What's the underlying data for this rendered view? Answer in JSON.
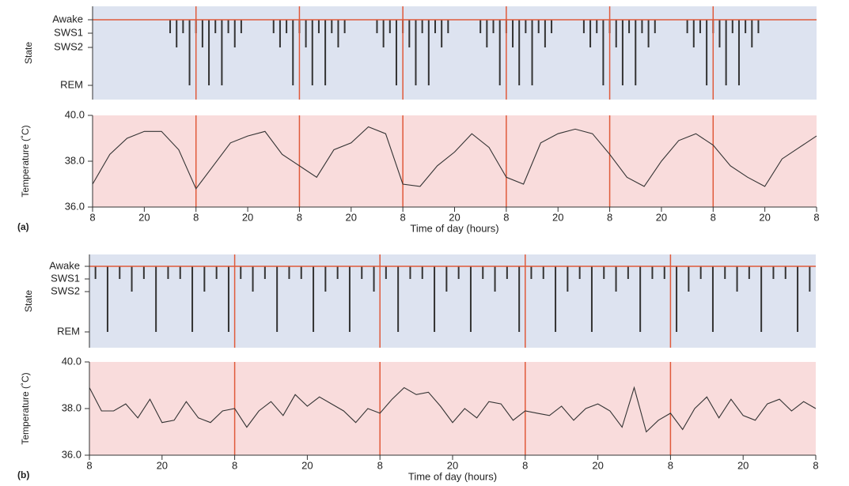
{
  "chart_data": [
    {
      "type": "state",
      "ylabel": "State",
      "y_categories": [
        "Awake",
        "SWS1",
        "SWS2",
        "REM"
      ],
      "xlim": [
        0,
        168
      ],
      "x": [
        18,
        19.5,
        21,
        22.5,
        24,
        25.5,
        27,
        28.5,
        30,
        31.5,
        33,
        34.5,
        42,
        43.5,
        45,
        46.5,
        48,
        49.5,
        51,
        52.5,
        54,
        55.5,
        57,
        58.5,
        66,
        67.5,
        69,
        70.5,
        72,
        73.5,
        75,
        76.5,
        78,
        79.5,
        81,
        82.5,
        90,
        91.5,
        93,
        94.5,
        96,
        97.5,
        99,
        100.5,
        102,
        103.5,
        105,
        106.5,
        114,
        115.5,
        117,
        118.5,
        120,
        121.5,
        123,
        124.5,
        126,
        127.5,
        129,
        130.5,
        138,
        139.5,
        141,
        142.5,
        144,
        145.5,
        147,
        148.5,
        150,
        151.5,
        153,
        154.5
      ],
      "values": [
        "SWS1",
        "SWS2",
        "SWS1",
        "REM",
        "SWS1",
        "SWS2",
        "REM",
        "SWS1",
        "REM",
        "SWS1",
        "SWS2",
        "SWS1",
        "SWS1",
        "SWS2",
        "SWS1",
        "REM",
        "SWS1",
        "SWS2",
        "REM",
        "SWS1",
        "REM",
        "SWS1",
        "SWS2",
        "SWS1",
        "SWS1",
        "SWS2",
        "SWS1",
        "REM",
        "SWS1",
        "SWS2",
        "REM",
        "SWS1",
        "REM",
        "SWS1",
        "SWS2",
        "SWS1",
        "SWS1",
        "SWS2",
        "SWS1",
        "REM",
        "SWS1",
        "SWS2",
        "REM",
        "SWS1",
        "REM",
        "SWS1",
        "SWS2",
        "SWS1",
        "SWS1",
        "SWS2",
        "SWS1",
        "REM",
        "SWS1",
        "SWS2",
        "REM",
        "SWS1",
        "REM",
        "SWS1",
        "SWS2",
        "SWS1",
        "SWS1",
        "SWS2",
        "SWS1",
        "REM",
        "SWS1",
        "SWS2",
        "REM",
        "SWS1",
        "REM",
        "SWS1",
        "SWS2",
        "SWS1"
      ],
      "color": "#333333"
    },
    {
      "type": "line",
      "ylabel": "Temperature (˚C)",
      "xlabel": "Time of day (hours)",
      "panel_label": "(a)",
      "xlim": [
        0,
        168
      ],
      "ylim": [
        36,
        40
      ],
      "yticks": [
        {
          "value": 36,
          "label": "36.0"
        },
        {
          "value": 38,
          "label": "38.0"
        },
        {
          "value": 40,
          "label": "40.0"
        }
      ],
      "xticks": [
        {
          "value": 0,
          "label": "8"
        },
        {
          "value": 12,
          "label": "20"
        },
        {
          "value": 24,
          "label": "8"
        },
        {
          "value": 36,
          "label": "20"
        },
        {
          "value": 48,
          "label": "8"
        },
        {
          "value": 60,
          "label": "20"
        },
        {
          "value": 72,
          "label": "8"
        },
        {
          "value": 84,
          "label": "20"
        },
        {
          "value": 96,
          "label": "8"
        },
        {
          "value": 108,
          "label": "20"
        },
        {
          "value": 120,
          "label": "8"
        },
        {
          "value": 132,
          "label": "20"
        },
        {
          "value": 144,
          "label": "8"
        },
        {
          "value": 156,
          "label": "20"
        },
        {
          "value": 168,
          "label": "8"
        }
      ],
      "x": [
        0,
        4,
        8,
        12,
        16,
        20,
        24,
        28,
        32,
        36,
        40,
        44,
        48,
        52,
        56,
        60,
        64,
        68,
        72,
        76,
        80,
        84,
        88,
        92,
        96,
        100,
        104,
        108,
        112,
        116,
        120,
        124,
        128,
        132,
        136,
        140,
        144,
        148,
        152,
        156,
        160,
        164,
        168
      ],
      "values": [
        37.0,
        38.3,
        39.0,
        39.3,
        39.3,
        38.5,
        36.8,
        37.8,
        38.8,
        39.1,
        39.3,
        38.3,
        37.8,
        37.3,
        38.5,
        38.8,
        39.5,
        39.2,
        37.0,
        36.9,
        37.8,
        38.4,
        39.2,
        38.6,
        37.3,
        37.0,
        38.8,
        39.2,
        39.4,
        39.2,
        38.3,
        37.3,
        36.9,
        38.0,
        38.9,
        39.2,
        38.7,
        37.8,
        37.3,
        36.9,
        38.1,
        38.6,
        39.1
      ],
      "color": "#333333"
    },
    {
      "type": "state",
      "ylabel": "State",
      "y_categories": [
        "Awake",
        "SWS1",
        "SWS2",
        "REM"
      ],
      "xlim": [
        0,
        120
      ],
      "x": [
        1,
        3,
        5,
        7,
        9,
        11,
        13,
        15,
        17,
        19,
        21,
        23,
        25,
        27,
        29,
        31,
        33,
        35,
        37,
        39,
        41,
        43,
        45,
        47,
        49,
        51,
        53,
        55,
        57,
        59,
        61,
        63,
        65,
        67,
        69,
        71,
        73,
        75,
        77,
        79,
        81,
        83,
        85,
        87,
        89,
        91,
        93,
        95,
        97,
        99,
        101,
        103,
        105,
        107,
        109,
        111,
        113,
        115,
        117,
        119
      ],
      "values": [
        "SWS1",
        "REM",
        "SWS1",
        "SWS2",
        "SWS1",
        "REM",
        "SWS1",
        "SWS1",
        "REM",
        "SWS2",
        "SWS1",
        "REM",
        "SWS1",
        "SWS2",
        "SWS1",
        "REM",
        "SWS1",
        "SWS1",
        "REM",
        "SWS2",
        "SWS1",
        "REM",
        "SWS1",
        "SWS2",
        "SWS1",
        "REM",
        "SWS1",
        "SWS1",
        "REM",
        "SWS2",
        "SWS1",
        "REM",
        "SWS1",
        "SWS2",
        "SWS1",
        "REM",
        "SWS1",
        "SWS1",
        "REM",
        "SWS2",
        "SWS1",
        "REM",
        "SWS1",
        "SWS2",
        "SWS1",
        "REM",
        "SWS1",
        "SWS1",
        "REM",
        "SWS2",
        "SWS1",
        "REM",
        "SWS1",
        "SWS2",
        "SWS1",
        "REM",
        "SWS1",
        "SWS1",
        "REM",
        "SWS2"
      ],
      "color": "#333333"
    },
    {
      "type": "line",
      "ylabel": "Temperature (˚C)",
      "xlabel": "Time of day (hours)",
      "panel_label": "(b)",
      "xlim": [
        0,
        120
      ],
      "ylim": [
        36,
        40
      ],
      "yticks": [
        {
          "value": 36,
          "label": "36.0"
        },
        {
          "value": 38,
          "label": "38.0"
        },
        {
          "value": 40,
          "label": "40.0"
        }
      ],
      "xticks": [
        {
          "value": 0,
          "label": "8"
        },
        {
          "value": 12,
          "label": "20"
        },
        {
          "value": 24,
          "label": "8"
        },
        {
          "value": 36,
          "label": "20"
        },
        {
          "value": 48,
          "label": "8"
        },
        {
          "value": 60,
          "label": "20"
        },
        {
          "value": 72,
          "label": "8"
        },
        {
          "value": 84,
          "label": "20"
        },
        {
          "value": 96,
          "label": "8"
        },
        {
          "value": 108,
          "label": "20"
        },
        {
          "value": 120,
          "label": "8"
        }
      ],
      "x": [
        0,
        2,
        4,
        6,
        8,
        10,
        12,
        14,
        16,
        18,
        20,
        22,
        24,
        26,
        28,
        30,
        32,
        34,
        36,
        38,
        40,
        42,
        44,
        46,
        48,
        50,
        52,
        54,
        56,
        58,
        60,
        62,
        64,
        66,
        68,
        70,
        72,
        74,
        76,
        78,
        80,
        82,
        84,
        86,
        88,
        90,
        92,
        94,
        96,
        98,
        100,
        102,
        104,
        106,
        108,
        110,
        112,
        114,
        116,
        118,
        120
      ],
      "values": [
        38.9,
        37.9,
        37.9,
        38.2,
        37.6,
        38.4,
        37.4,
        37.5,
        38.3,
        37.6,
        37.4,
        37.9,
        38.0,
        37.2,
        37.9,
        38.3,
        37.7,
        38.6,
        38.1,
        38.5,
        38.2,
        37.9,
        37.4,
        38.0,
        37.8,
        38.4,
        38.9,
        38.6,
        38.7,
        38.1,
        37.4,
        38.0,
        37.6,
        38.3,
        38.2,
        37.5,
        37.9,
        37.8,
        37.7,
        38.1,
        37.5,
        38.0,
        38.2,
        37.9,
        37.2,
        38.9,
        37.0,
        37.5,
        37.8,
        37.1,
        38.0,
        38.5,
        37.6,
        38.4,
        37.7,
        37.5,
        38.2,
        38.4,
        37.9,
        38.3,
        38.0
      ],
      "color": "#333333"
    }
  ]
}
